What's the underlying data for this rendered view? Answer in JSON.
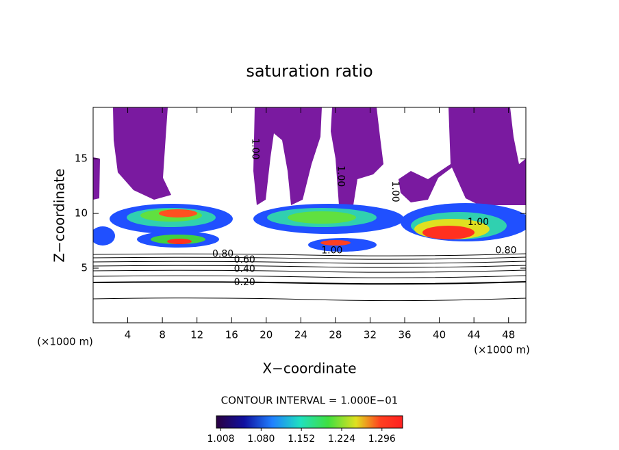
{
  "chart_data": {
    "type": "contour",
    "title": "saturation ratio",
    "xlabel": "X−coordinate",
    "ylabel": "Z−coordinate",
    "xunit": "(×1000 m)",
    "yunit": "(×1000 m)",
    "xlim": [
      0,
      50
    ],
    "ylim": [
      0,
      19.7
    ],
    "xticks": [
      4,
      8,
      12,
      16,
      20,
      24,
      28,
      32,
      36,
      40,
      44,
      48
    ],
    "yticks": [
      5,
      10,
      15
    ],
    "contour_labels": [
      {
        "text": "0.20",
        "x": 17.5,
        "y": 3.7
      },
      {
        "text": "0.40",
        "x": 17.5,
        "y": 4.9
      },
      {
        "text": "0.60",
        "x": 17.5,
        "y": 5.75
      },
      {
        "text": "0.80",
        "x": 15.0,
        "y": 6.3
      },
      {
        "text": "1.00",
        "x": 27.6,
        "y": 6.6
      },
      {
        "text": "1.00",
        "x": 44.5,
        "y": 9.2
      },
      {
        "text": "0.80",
        "x": 47.7,
        "y": 6.6
      },
      {
        "text": "1.00",
        "x": 18.7,
        "y": 15.9,
        "rotation": 90
      },
      {
        "text": "1.00",
        "x": 28.6,
        "y": 13.4,
        "rotation": 90
      },
      {
        "text": "1.00",
        "x": 34.9,
        "y": 12.0,
        "rotation": 90
      }
    ],
    "contour_interval": "CONTOUR INTERVAL = 1.000E−01",
    "colorbar": {
      "lim": [
        1.0,
        1.333
      ],
      "ticks": [
        1.008,
        {
          "value": 1.08,
          "label": "1.080"
        },
        1.152,
        1.224,
        1.296
      ]
    }
  }
}
